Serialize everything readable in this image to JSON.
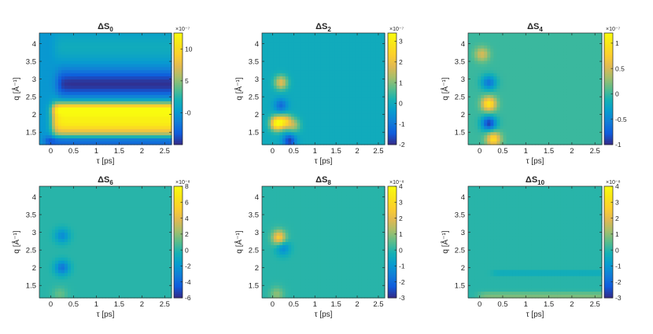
{
  "chart_data": [
    {
      "type": "heatmap",
      "title": "ΔS",
      "title_sub": "0",
      "xlabel": "τ [ps]",
      "ylabel": "q [Å⁻¹]",
      "xlim": [
        -0.25,
        2.65
      ],
      "ylim": [
        1.15,
        4.3
      ],
      "x_ticks": [
        "0",
        "0.5",
        "1",
        "1.5",
        "2",
        "2.5"
      ],
      "y_ticks": [
        "1.5",
        "2",
        "2.5",
        "3",
        "3.5",
        "4"
      ],
      "colorbar": {
        "min": -5,
        "max": 12.5,
        "ticks": [
          "-0",
          "5",
          "10"
        ],
        "tick_values": [
          0,
          5,
          10
        ],
        "exponent": "×10⁻⁷"
      },
      "colormap": "parula",
      "features": [
        {
          "kind": "band",
          "q": 1.8,
          "q_width": 0.32,
          "tau_start": 0.05,
          "level": 11.5
        },
        {
          "kind": "band",
          "q": 2.15,
          "q_width": 0.12,
          "tau_start": 0.05,
          "level": 7
        },
        {
          "kind": "band",
          "q": 2.85,
          "q_width": 0.28,
          "tau_start": 0.15,
          "level": -4.8
        },
        {
          "kind": "band",
          "q": 1.25,
          "q_width": 0.1,
          "tau_start": -0.1,
          "level": -5
        },
        {
          "kind": "band",
          "q": 3.9,
          "q_width": 0.3,
          "tau_start": 0.1,
          "level": 1.5
        }
      ]
    },
    {
      "type": "heatmap",
      "title": "ΔS",
      "title_sub": "2",
      "xlabel": "τ [ps]",
      "ylabel": "q [Å⁻¹]",
      "xlim": [
        -0.25,
        2.65
      ],
      "ylim": [
        1.15,
        4.3
      ],
      "x_ticks": [
        "0",
        "0.5",
        "1",
        "1.5",
        "2",
        "2.5"
      ],
      "y_ticks": [
        "1.5",
        "2",
        "2.5",
        "3",
        "3.5",
        "4"
      ],
      "colorbar": {
        "min": -2,
        "max": 3.4,
        "ticks": [
          "-2",
          "-1",
          "0",
          "1",
          "2",
          "3"
        ],
        "tick_values": [
          -2,
          -1,
          0,
          1,
          2,
          3
        ],
        "exponent": "×10⁻⁷"
      },
      "colormap": "parula",
      "features": [
        {
          "kind": "blob",
          "tau": 0.1,
          "q": 1.75,
          "level": 3.2
        },
        {
          "kind": "blob",
          "tau": 0.3,
          "q": 1.8,
          "level": 2.0
        },
        {
          "kind": "blob",
          "tau": 0.5,
          "q": 1.7,
          "level": 1.2
        },
        {
          "kind": "blob",
          "tau": 0.2,
          "q": 2.9,
          "level": 1.8
        },
        {
          "kind": "blob",
          "tau": 0.2,
          "q": 2.25,
          "level": -1.2
        },
        {
          "kind": "blob",
          "tau": 0.4,
          "q": 1.25,
          "level": -1.8
        }
      ]
    },
    {
      "type": "heatmap",
      "title": "ΔS",
      "title_sub": "4",
      "xlabel": "τ [ps]",
      "ylabel": "q [Å⁻¹]",
      "xlim": [
        -0.25,
        2.65
      ],
      "ylim": [
        1.15,
        4.3
      ],
      "x_ticks": [
        "0",
        "0.5",
        "1",
        "1.5",
        "2",
        "2.5"
      ],
      "y_ticks": [
        "1.5",
        "2",
        "2.5",
        "3",
        "3.5",
        "4"
      ],
      "colorbar": {
        "min": -1,
        "max": 1.2,
        "ticks": [
          "-1",
          "-0.5",
          "0",
          "0.5",
          "1"
        ],
        "tick_values": [
          -1,
          -0.5,
          0,
          0.5,
          1
        ],
        "exponent": "×10⁻⁷"
      },
      "colormap": "parula",
      "features": [
        {
          "kind": "blob",
          "tau": 0.2,
          "q": 2.3,
          "level": 1.0
        },
        {
          "kind": "blob",
          "tau": 0.2,
          "q": 1.75,
          "level": -0.9
        },
        {
          "kind": "blob",
          "tau": 0.2,
          "q": 2.9,
          "level": -0.6
        },
        {
          "kind": "blob",
          "tau": 0.3,
          "q": 1.3,
          "level": 0.9
        },
        {
          "kind": "blob",
          "tau": 0.05,
          "q": 3.7,
          "level": 0.5
        }
      ]
    },
    {
      "type": "heatmap",
      "title": "ΔS",
      "title_sub": "6",
      "xlabel": "τ [ps]",
      "ylabel": "q [Å⁻¹]",
      "xlim": [
        -0.25,
        2.65
      ],
      "ylim": [
        1.15,
        4.3
      ],
      "x_ticks": [
        "0",
        "0.5",
        "1",
        "1.5",
        "2",
        "2.5"
      ],
      "y_ticks": [
        "1.5",
        "2",
        "2.5",
        "3",
        "3.5",
        "4"
      ],
      "colorbar": {
        "min": -6,
        "max": 8,
        "ticks": [
          "-6",
          "-4",
          "-2",
          "0",
          "2",
          "4",
          "6",
          "8"
        ],
        "tick_values": [
          -6,
          -4,
          -2,
          0,
          2,
          4,
          6,
          8
        ],
        "exponent": "×10⁻⁸"
      },
      "colormap": "parula",
      "features": [
        {
          "kind": "blob",
          "tau": 0.25,
          "q": 2.0,
          "level": -3.5
        },
        {
          "kind": "blob",
          "tau": 0.25,
          "q": 2.9,
          "level": -2.5
        },
        {
          "kind": "blob",
          "tau": 0.2,
          "q": 1.25,
          "level": 1.2
        }
      ]
    },
    {
      "type": "heatmap",
      "title": "ΔS",
      "title_sub": "8",
      "xlabel": "τ [ps]",
      "ylabel": "q [Å⁻¹]",
      "xlim": [
        -0.25,
        2.65
      ],
      "ylim": [
        1.15,
        4.3
      ],
      "x_ticks": [
        "0",
        "0.5",
        "1",
        "1.5",
        "2",
        "2.5"
      ],
      "y_ticks": [
        "1.5",
        "2",
        "2.5",
        "3",
        "3.5",
        "4"
      ],
      "colorbar": {
        "min": -3,
        "max": 4,
        "ticks": [
          "-3",
          "-2",
          "-1",
          "0",
          "1",
          "2",
          "3",
          "4"
        ],
        "tick_values": [
          -3,
          -2,
          -1,
          0,
          1,
          2,
          3,
          4
        ],
        "exponent": "×10⁻⁸"
      },
      "colormap": "parula",
      "features": [
        {
          "kind": "blob",
          "tau": 0.15,
          "q": 2.85,
          "level": 2.6
        },
        {
          "kind": "blob",
          "tau": 0.25,
          "q": 2.55,
          "level": -1.3
        },
        {
          "kind": "blob",
          "tau": 0.1,
          "q": 1.25,
          "level": 1.0
        }
      ]
    },
    {
      "type": "heatmap",
      "title": "ΔS",
      "title_sub": "10",
      "xlabel": "τ [ps]",
      "ylabel": "q [Å⁻¹]",
      "xlim": [
        -0.25,
        2.65
      ],
      "ylim": [
        1.15,
        4.3
      ],
      "x_ticks": [
        "0",
        "0.5",
        "1",
        "1.5",
        "2",
        "2.5"
      ],
      "y_ticks": [
        "1.5",
        "2",
        "2.5",
        "3",
        "3.5",
        "4"
      ],
      "colorbar": {
        "min": -3,
        "max": 4,
        "ticks": [
          "-3",
          "-2",
          "-1",
          "0",
          "1",
          "2",
          "3",
          "4"
        ],
        "tick_values": [
          -3,
          -2,
          -1,
          0,
          1,
          2,
          3,
          4
        ],
        "exponent": "×10⁻⁸"
      },
      "colormap": "parula",
      "features": [
        {
          "kind": "band",
          "q": 1.22,
          "q_width": 0.06,
          "tau_start": 0.0,
          "level": 0.9
        },
        {
          "kind": "band",
          "q": 1.85,
          "q_width": 0.05,
          "tau_start": 0.3,
          "level": -0.5
        }
      ]
    }
  ]
}
